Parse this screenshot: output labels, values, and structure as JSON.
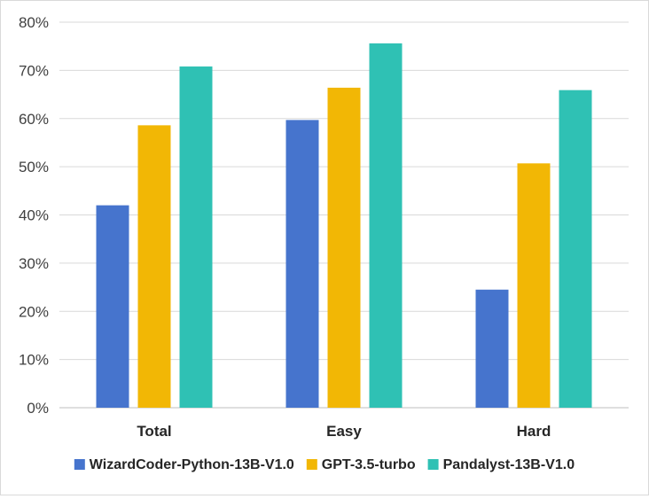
{
  "chart_data": {
    "type": "bar",
    "categories": [
      "Total",
      "Easy",
      "Hard"
    ],
    "series": [
      {
        "name": "WizardCoder-Python-13B-V1.0",
        "color": "#4674CD",
        "values": [
          42,
          59.7,
          24.5
        ]
      },
      {
        "name": "GPT-3.5-turbo",
        "color": "#F2B705",
        "values": [
          58.6,
          66.4,
          50.7
        ]
      },
      {
        "name": "Pandalyst-13B-V1.0",
        "color": "#2FC1B4",
        "values": [
          70.8,
          75.6,
          65.9
        ]
      }
    ],
    "ylim": [
      0,
      80
    ],
    "yticks": [
      0,
      10,
      20,
      30,
      40,
      50,
      60,
      70,
      80
    ],
    "ytick_format": "%",
    "grid": true,
    "legend_position": "bottom"
  }
}
